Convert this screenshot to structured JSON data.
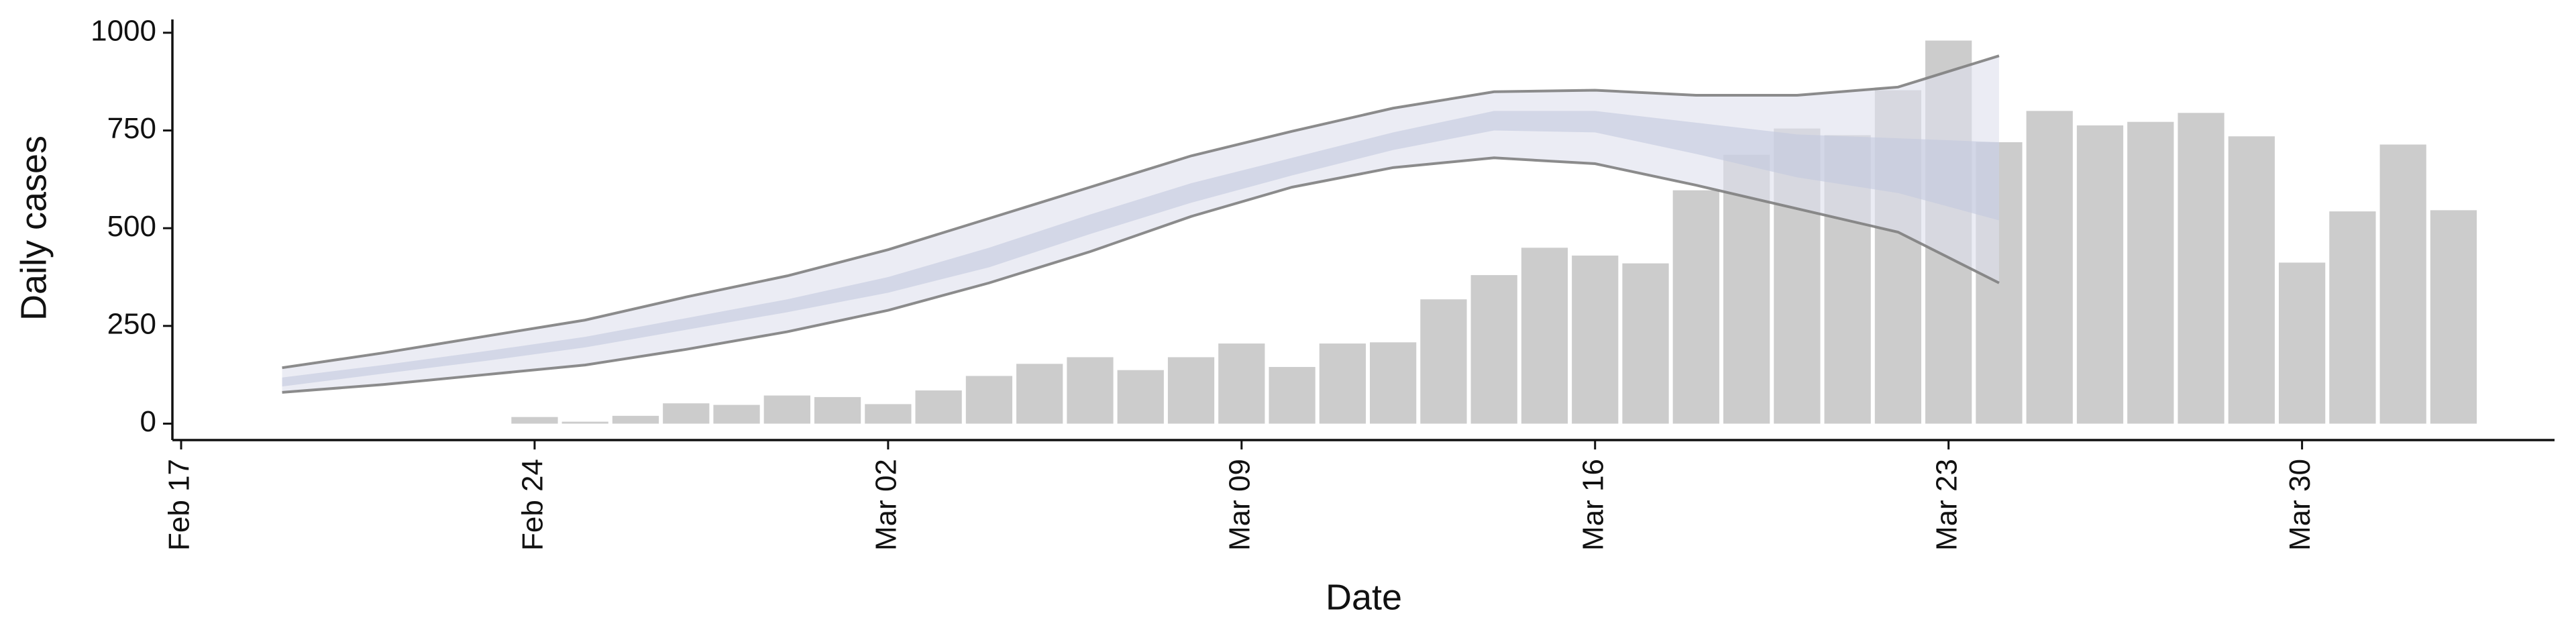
{
  "chart_data": {
    "type": "bar",
    "x_label": "Date",
    "y_label": "Daily cases",
    "x": [
      "Feb 24",
      "Feb 25",
      "Feb 26",
      "Feb 27",
      "Feb 28",
      "Feb 29",
      "Mar 01",
      "Mar 02",
      "Mar 03",
      "Mar 04",
      "Mar 05",
      "Mar 06",
      "Mar 07",
      "Mar 08",
      "Mar 09",
      "Mar 10",
      "Mar 11",
      "Mar 12",
      "Mar 13",
      "Mar 14",
      "Mar 15",
      "Mar 16",
      "Mar 17",
      "Mar 18",
      "Mar 19",
      "Mar 20",
      "Mar 21",
      "Mar 22",
      "Mar 23",
      "Mar 24",
      "Mar 25",
      "Mar 26",
      "Mar 27",
      "Mar 28",
      "Mar 29",
      "Mar 30",
      "Mar 31",
      "Apr 01",
      "Apr 02"
    ],
    "values": [
      17,
      5,
      20,
      52,
      48,
      72,
      68,
      50,
      85,
      122,
      153,
      170,
      137,
      170,
      205,
      145,
      205,
      208,
      318,
      380,
      450,
      430,
      410,
      597,
      688,
      755,
      738,
      853,
      980,
      720,
      800,
      763,
      772,
      795,
      735,
      412,
      543,
      714,
      546
    ],
    "color": "#cccccc",
    "band_x": [
      "Feb 19",
      "Feb 21",
      "Feb 23",
      "Feb 25",
      "Feb 27",
      "Feb 29",
      "Mar 02",
      "Mar 04",
      "Mar 06",
      "Mar 08",
      "Mar 10",
      "Mar 12",
      "Mar 14",
      "Mar 16",
      "Mar 18",
      "Mar 20",
      "Mar 22",
      "Mar 24"
    ],
    "bands": [
      {
        "upper": [
          143,
          181,
          223,
          265,
          324,
          378,
          445,
          525,
          605,
          685,
          748,
          807,
          849,
          853,
          840,
          840,
          861,
          941
        ],
        "lower": [
          80,
          100,
          125,
          150,
          190,
          235,
          290,
          360,
          440,
          530,
          605,
          655,
          680,
          665,
          610,
          550,
          490,
          360
        ],
        "color": "#dde0ec",
        "line_color": "#808080"
      },
      {
        "upper": [
          118,
          150,
          185,
          222,
          270,
          318,
          375,
          450,
          535,
          615,
          680,
          745,
          800,
          800,
          770,
          740,
          730,
          720
        ],
        "lower": [
          95,
          128,
          160,
          195,
          240,
          285,
          335,
          400,
          485,
          565,
          635,
          700,
          750,
          745,
          690,
          630,
          590,
          520
        ],
        "color": "#c3c9de"
      }
    ],
    "xlim": [
      "Feb 17",
      "Apr 04"
    ],
    "xticks": [
      "Feb 17",
      "Feb 24",
      "Mar 02",
      "Mar 09",
      "Mar 16",
      "Mar 23",
      "Mar 30"
    ],
    "ylim": [
      -42,
      1034
    ],
    "yticks": [
      0,
      250,
      500,
      750,
      1000
    ]
  }
}
